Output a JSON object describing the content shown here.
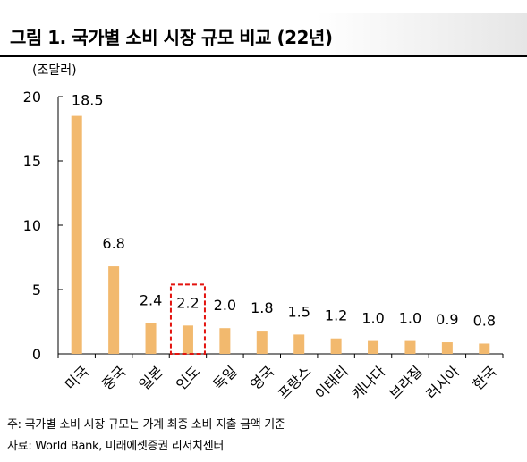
{
  "figure": {
    "title": "그림 1. 국가별 소비 시장 규모 비교 (22년)",
    "note": "주: 국가별 소비 시장 규모는 가계 최종 소비 지출 금액 기준",
    "source": "자료: World Bank, 미래에셋증권 리서치센터"
  },
  "chart_data": {
    "type": "bar",
    "title": "",
    "ylabel": "(조달러)",
    "xlabel": "",
    "ylim": [
      0,
      20
    ],
    "yticks": [
      0,
      5,
      10,
      15,
      20
    ],
    "categories": [
      "미국",
      "중국",
      "일본",
      "인도",
      "독일",
      "영국",
      "프랑스",
      "이태리",
      "캐나다",
      "브라질",
      "러시아",
      "한국"
    ],
    "values": [
      18.5,
      6.8,
      2.4,
      2.2,
      2.0,
      1.8,
      1.5,
      1.2,
      1.0,
      1.0,
      0.9,
      0.8
    ],
    "value_labels": [
      "18.5",
      "6.8",
      "2.4",
      "2.2",
      "2.0",
      "1.8",
      "1.5",
      "1.2",
      "1.0",
      "1.0",
      "0.9",
      "0.8"
    ],
    "highlighted_category": "인도",
    "grid": false,
    "legend": "none",
    "colors": {
      "bar": "#F2B96E",
      "highlight_box": "#E3130F",
      "axis": "#000000"
    }
  }
}
